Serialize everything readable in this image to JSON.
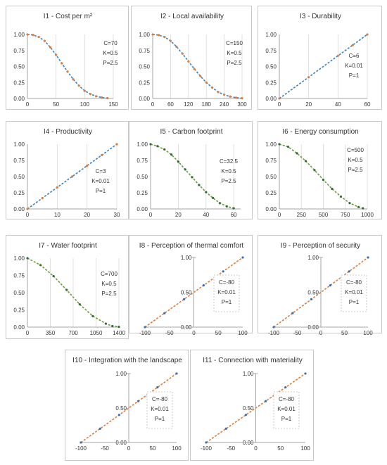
{
  "chart_data": [
    {
      "type": "line",
      "title": "I1 - Cost per m²",
      "xlim": [
        0,
        150
      ],
      "ylim": [
        0,
        1
      ],
      "xticks": [
        "0",
        "50",
        "100",
        "150"
      ],
      "yticks": [
        "0.00",
        "0.25",
        "0.50",
        "0.75",
        "1.00"
      ],
      "params": {
        "C": "C=70",
        "K": "K=0.5",
        "P": "P=2.5"
      },
      "curve": "s",
      "x": [
        0,
        10,
        20,
        30,
        40,
        50,
        60,
        70,
        80,
        90,
        100,
        110,
        120,
        130,
        140
      ],
      "y": [
        1.0,
        0.992,
        0.96,
        0.9,
        0.8,
        0.68,
        0.55,
        0.42,
        0.3,
        0.2,
        0.12,
        0.07,
        0.035,
        0.015,
        0.005
      ],
      "dash_color": "#3a7fc1",
      "point_color": "#e07b39"
    },
    {
      "type": "line",
      "title": "I2 - Local availability",
      "xlim": [
        0,
        300
      ],
      "ylim": [
        0,
        1
      ],
      "xticks": [
        "0",
        "60",
        "120",
        "180",
        "240",
        "300"
      ],
      "yticks": [
        "0.00",
        "0.25",
        "0.50",
        "0.75",
        "1.00"
      ],
      "params": {
        "C": "C=150",
        "K": "K=0.5",
        "P": "P=2.5"
      },
      "curve": "s",
      "x": [
        0,
        20,
        40,
        60,
        80,
        100,
        120,
        140,
        160,
        180,
        200,
        220,
        240,
        260,
        280,
        300
      ],
      "y": [
        1.0,
        0.99,
        0.96,
        0.9,
        0.81,
        0.7,
        0.58,
        0.46,
        0.35,
        0.25,
        0.17,
        0.1,
        0.06,
        0.03,
        0.012,
        0.004
      ],
      "dash_color": "#3a7fc1",
      "point_color": "#e07b39"
    },
    {
      "type": "line",
      "title": "I3 - Durability",
      "xlim": [
        0,
        60
      ],
      "ylim": [
        0,
        1
      ],
      "xticks": [
        "0",
        "20",
        "40",
        "60"
      ],
      "yticks": [
        "0.00",
        "0.25",
        "0.50",
        "0.75",
        "1.00"
      ],
      "params": {
        "C": "C=6",
        "K": "K=0.01",
        "P": "P=1"
      },
      "curve": "linear",
      "x": [
        0,
        20,
        40,
        50,
        60
      ],
      "y": [
        0.0,
        0.333,
        0.667,
        0.833,
        1.0
      ],
      "dash_color": "#3a7fc1",
      "point_color": "#e07b39"
    },
    {
      "type": "line",
      "title": "I4 - Productivity",
      "xlim": [
        0,
        30
      ],
      "ylim": [
        0,
        1
      ],
      "xticks": [
        "0",
        "10",
        "20",
        "30"
      ],
      "yticks": [
        "0.00",
        "0.25",
        "0.50",
        "0.75",
        "1.00"
      ],
      "params": {
        "C": "C=3",
        "K": "K=0.01",
        "P": "P=1"
      },
      "curve": "linear",
      "x": [
        0,
        5,
        10,
        15,
        20,
        25,
        30
      ],
      "y": [
        0.0,
        0.167,
        0.333,
        0.5,
        0.667,
        0.833,
        1.0
      ],
      "dash_color": "#3a7fc1",
      "point_color": "#e07b39"
    },
    {
      "type": "line",
      "title": "I5 - Carbon footprint",
      "xlim": [
        0,
        65
      ],
      "ylim": [
        0,
        1
      ],
      "xticks": [
        "0",
        "20",
        "40",
        "60"
      ],
      "yticks": [
        "0.00",
        "0.25",
        "0.50",
        "0.75",
        "1.00"
      ],
      "params": {
        "C": "C=32.5",
        "K": "K=0.5",
        "P": "P=2.5"
      },
      "curve": "s",
      "x": [
        0,
        5,
        10,
        15,
        20,
        25,
        30,
        35,
        40,
        45,
        50,
        55,
        60
      ],
      "y": [
        1.0,
        0.97,
        0.92,
        0.84,
        0.73,
        0.61,
        0.49,
        0.37,
        0.26,
        0.17,
        0.09,
        0.04,
        0.01
      ],
      "dash_color": "#6b9a3a",
      "point_color": "#2e6e36"
    },
    {
      "type": "line",
      "title": "I6 - Energy consumption",
      "xlim": [
        0,
        1000
      ],
      "ylim": [
        0,
        1
      ],
      "xticks": [
        "0",
        "250",
        "500",
        "750",
        "1000"
      ],
      "yticks": [
        "0.00",
        "0.25",
        "0.50",
        "0.75",
        "1.00"
      ],
      "params": {
        "C": "C=500",
        "K": "K=0.5",
        "P": "P=2.5"
      },
      "curve": "s",
      "x": [
        0,
        100,
        200,
        300,
        400,
        500,
        600,
        700,
        800,
        900,
        950
      ],
      "y": [
        1.0,
        0.96,
        0.86,
        0.74,
        0.6,
        0.45,
        0.31,
        0.19,
        0.09,
        0.03,
        0.01
      ],
      "dash_color": "#6b9a3a",
      "point_color": "#2e6e36"
    },
    {
      "type": "line",
      "title": "I7 - Water footprint",
      "xlim": [
        0,
        1400
      ],
      "ylim": [
        0,
        1
      ],
      "xticks": [
        "0",
        "350",
        "700",
        "1050",
        "1400"
      ],
      "yticks": [
        "0.00",
        "0.25",
        "0.50",
        "0.75",
        "1.00"
      ],
      "params": {
        "C": "C=700",
        "K": "K=0.5",
        "P": "P=2.5"
      },
      "curve": "s",
      "x": [
        0,
        200,
        400,
        600,
        800,
        1000,
        1200,
        1300,
        1400
      ],
      "y": [
        1.0,
        0.9,
        0.74,
        0.54,
        0.33,
        0.16,
        0.05,
        0.015,
        0.004
      ],
      "dash_color": "#6b9a3a",
      "point_color": "#2e6e36"
    },
    {
      "type": "line",
      "title": "I8 - Perception of thermal comfort",
      "xlim": [
        -100,
        100
      ],
      "ylim": [
        0,
        1
      ],
      "xticks": [
        "-100",
        "-50",
        "0",
        "50",
        "100"
      ],
      "yticks": [
        "0.00",
        "0.50",
        "1.00"
      ],
      "yaxis_at_zero": true,
      "params": {
        "C": "C=-80",
        "K": "K=0.01",
        "P": "P=1"
      },
      "curve": "linear",
      "x": [
        -100,
        -60,
        -20,
        20,
        60,
        100
      ],
      "y": [
        0.0,
        0.2,
        0.4,
        0.6,
        0.8,
        1.0
      ],
      "dash_color": "#e07b39",
      "point_color": "#3a6fb0"
    },
    {
      "type": "line",
      "title": "I9 - Perception of security",
      "xlim": [
        -100,
        100
      ],
      "ylim": [
        0,
        1
      ],
      "xticks": [
        "-100",
        "-50",
        "0",
        "50",
        "100"
      ],
      "yticks": [
        "0.00",
        "0.50",
        "1.00"
      ],
      "yaxis_at_zero": true,
      "params": {
        "C": "C=-80",
        "K": "K=0.01",
        "P": "P=1"
      },
      "curve": "linear",
      "x": [
        -100,
        -60,
        -20,
        20,
        60,
        100
      ],
      "y": [
        0.0,
        0.2,
        0.4,
        0.6,
        0.8,
        1.0
      ],
      "dash_color": "#e07b39",
      "point_color": "#3a6fb0"
    },
    {
      "type": "line",
      "title": "I10 - Integration with the landscape",
      "xlim": [
        -100,
        100
      ],
      "ylim": [
        0,
        1
      ],
      "xticks": [
        "-100",
        "-50",
        "0",
        "50",
        "100"
      ],
      "yticks": [
        "0.00",
        "0.50",
        "1.00"
      ],
      "yaxis_at_zero": true,
      "params": {
        "C": "C=-80",
        "K": "K=0.01",
        "P": "P=1"
      },
      "curve": "linear",
      "x": [
        -100,
        -60,
        -20,
        20,
        60,
        100
      ],
      "y": [
        0.0,
        0.2,
        0.4,
        0.6,
        0.8,
        1.0
      ],
      "dash_color": "#e07b39",
      "point_color": "#3a6fb0"
    },
    {
      "type": "line",
      "title": "I11 - Connection with materiality",
      "xlim": [
        -100,
        100
      ],
      "ylim": [
        0,
        1
      ],
      "xticks": [
        "-100",
        "-50",
        "0",
        "50",
        "100"
      ],
      "yticks": [
        "0.00",
        "0.50",
        "1.00"
      ],
      "yaxis_at_zero": true,
      "params": {
        "C": "C=-80",
        "K": "K=0.01",
        "P": "P=1"
      },
      "curve": "linear",
      "x": [
        -100,
        -60,
        -20,
        20,
        60,
        100
      ],
      "y": [
        0.0,
        0.2,
        0.4,
        0.6,
        0.8,
        1.0
      ],
      "dash_color": "#e07b39",
      "point_color": "#3a6fb0"
    }
  ]
}
